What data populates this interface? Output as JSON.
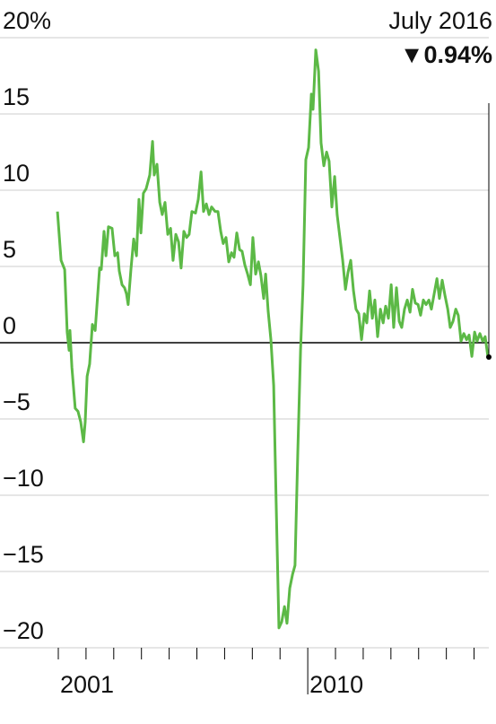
{
  "chart_data": {
    "type": "line",
    "annotation": {
      "date": "July 2016",
      "value_label": "▼0.94%"
    },
    "x": [
      2000.97,
      2001.1,
      2001.23,
      2001.32,
      2001.39,
      2001.42,
      2001.49,
      2001.61,
      2001.71,
      2001.81,
      2001.91,
      2001.97,
      2002.04,
      2002.13,
      2002.23,
      2002.33,
      2002.42,
      2002.49,
      2002.55,
      2002.65,
      2002.72,
      2002.81,
      2002.94,
      2003.04,
      2003.14,
      2003.2,
      2003.3,
      2003.39,
      2003.46,
      2003.52,
      2003.62,
      2003.72,
      2003.82,
      2003.91,
      2003.98,
      2004.07,
      2004.17,
      2004.3,
      2004.4,
      2004.46,
      2004.56,
      2004.66,
      2004.75,
      2004.85,
      2004.95,
      2005.05,
      2005.14,
      2005.24,
      2005.34,
      2005.43,
      2005.53,
      2005.63,
      2005.72,
      2005.82,
      2005.95,
      2006.05,
      2006.15,
      2006.24,
      2006.34,
      2006.44,
      2006.53,
      2006.66,
      2006.76,
      2006.86,
      2006.95,
      2007.05,
      2007.15,
      2007.25,
      2007.34,
      2007.44,
      2007.54,
      2007.63,
      2007.73,
      2007.83,
      2007.93,
      2008.02,
      2008.12,
      2008.22,
      2008.31,
      2008.41,
      2008.48,
      2008.57,
      2008.67,
      2008.77,
      2008.86,
      2008.96,
      2009.06,
      2009.16,
      2009.25,
      2009.35,
      2009.45,
      2009.54,
      2009.64,
      2009.74,
      2009.83,
      2009.93,
      2010.03,
      2010.13,
      2010.19,
      2010.29,
      2010.39,
      2010.48,
      2010.58,
      2010.68,
      2010.77,
      2010.87,
      2010.97,
      2011.06,
      2011.16,
      2011.26,
      2011.36,
      2011.45,
      2011.55,
      2011.65,
      2011.74,
      2011.84,
      2011.94,
      2012.04,
      2012.13,
      2012.23,
      2012.33,
      2012.42,
      2012.52,
      2012.62,
      2012.72,
      2012.81,
      2012.91,
      2013.01,
      2013.1,
      2013.2,
      2013.3,
      2013.39,
      2013.49,
      2013.59,
      2013.69,
      2013.78,
      2013.88,
      2013.98,
      2014.07,
      2014.17,
      2014.27,
      2014.37,
      2014.46,
      2014.56,
      2014.66,
      2014.75,
      2014.85,
      2014.95,
      2015.05,
      2015.14,
      2015.24,
      2015.34,
      2015.43,
      2015.53,
      2015.63,
      2015.73,
      2015.82,
      2015.92,
      2016.02,
      2016.11,
      2016.21,
      2016.31,
      2016.4,
      2016.5
    ],
    "series": [
      {
        "color": "#5cb946",
        "values": [
          8.6,
          5.4,
          4.8,
          0.7,
          -0.5,
          0.8,
          -1.6,
          -4.3,
          -4.5,
          -5.2,
          -6.5,
          -5.2,
          -2.2,
          -1.4,
          1.2,
          0.8,
          3.1,
          4.9,
          4.8,
          7.3,
          5.7,
          7.6,
          7.5,
          5.7,
          5.9,
          4.7,
          3.8,
          3.6,
          3.2,
          2.5,
          4.8,
          6.8,
          5.7,
          9.4,
          7.2,
          9.8,
          10.1,
          11.0,
          13.2,
          11.0,
          11.7,
          9.2,
          8.4,
          9.2,
          7.1,
          7.5,
          5.4,
          7.1,
          6.6,
          4.9,
          7.3,
          6.9,
          7.1,
          8.6,
          8.5,
          9.4,
          11.2,
          8.6,
          9.1,
          8.4,
          8.9,
          8.6,
          8.6,
          7.3,
          6.5,
          6.9,
          5.3,
          5.9,
          5.6,
          7.2,
          6.1,
          6.0,
          5.1,
          4.5,
          3.8,
          6.9,
          4.5,
          5.3,
          4.4,
          2.9,
          4.5,
          2.1,
          0.2,
          -2.8,
          -10.5,
          -18.7,
          -18.3,
          -17.3,
          -18.4,
          -16.1,
          -15.2,
          -14.6,
          -7.2,
          -0.5,
          3.8,
          12.0,
          12.8,
          16.3,
          15.3,
          19.2,
          17.8,
          13.1,
          11.6,
          12.5,
          11.9,
          8.9,
          10.9,
          8.4,
          6.9,
          5.4,
          3.5,
          4.6,
          5.4,
          3.4,
          2.2,
          1.9,
          0.2,
          1.9,
          1.3,
          3.4,
          1.6,
          2.8,
          0.4,
          2.2,
          1.3,
          2.4,
          1.6,
          3.8,
          1.0,
          3.6,
          1.4,
          1.0,
          2.2,
          2.8,
          2.0,
          3.5,
          2.6,
          2.5,
          1.8,
          2.8,
          2.5,
          2.8,
          2.2,
          3.2,
          4.2,
          2.9,
          4.1,
          3.1,
          2.2,
          1.0,
          1.4,
          2.2,
          1.8,
          0.1,
          0.6,
          0.2,
          0.5,
          -0.9,
          0.7,
          0.1,
          0.6,
          0.1,
          0.4,
          -0.94
        ]
      }
    ],
    "xlim": [
      2001,
      2016.5
    ],
    "xticks": [
      2001,
      2010
    ],
    "xminor_ticks": [
      2002,
      2003,
      2004,
      2005,
      2006,
      2007,
      2008,
      2009,
      2011,
      2012,
      2013,
      2014,
      2015,
      2016
    ],
    "ylim": [
      -20,
      20
    ],
    "yticks": [
      {
        "value": 20,
        "label": "20%"
      },
      15,
      10,
      5,
      0,
      {
        "value": -5,
        "label": "−5"
      },
      {
        "value": -10,
        "label": "−10"
      },
      {
        "value": -15,
        "label": "−15"
      },
      {
        "value": -20,
        "label": "−20"
      }
    ],
    "grid": true
  }
}
